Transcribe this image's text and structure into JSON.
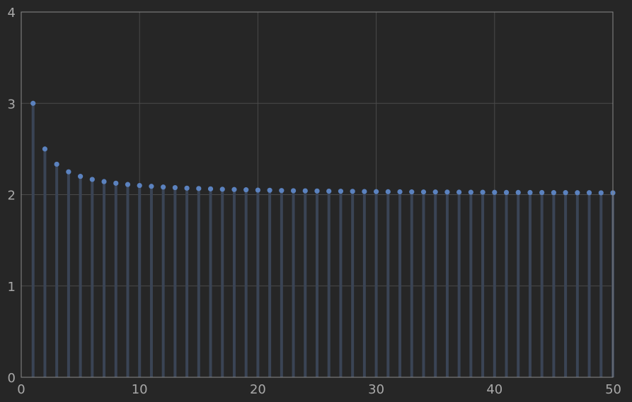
{
  "chart_data": {
    "type": "scatter",
    "style": "stem",
    "title": "",
    "xlabel": "",
    "ylabel": "",
    "xlim": [
      0,
      50
    ],
    "ylim": [
      0,
      4
    ],
    "grid": true,
    "x_ticks": [
      0,
      10,
      20,
      30,
      40,
      50
    ],
    "y_ticks": [
      0,
      1,
      2,
      3,
      4
    ],
    "series": [
      {
        "x": [
          1,
          2,
          3,
          4,
          5,
          6,
          7,
          8,
          9,
          10,
          11,
          12,
          13,
          14,
          15,
          16,
          17,
          18,
          19,
          20,
          21,
          22,
          23,
          24,
          25,
          26,
          27,
          28,
          29,
          30,
          31,
          32,
          33,
          34,
          35,
          36,
          37,
          38,
          39,
          40,
          41,
          42,
          43,
          44,
          45,
          46,
          47,
          48,
          49,
          50
        ],
        "values": [
          3.0,
          2.5,
          2.333,
          2.25,
          2.2,
          2.167,
          2.143,
          2.125,
          2.111,
          2.1,
          2.091,
          2.083,
          2.077,
          2.071,
          2.067,
          2.063,
          2.059,
          2.056,
          2.053,
          2.05,
          2.048,
          2.045,
          2.043,
          2.042,
          2.04,
          2.038,
          2.037,
          2.036,
          2.034,
          2.033,
          2.032,
          2.031,
          2.03,
          2.029,
          2.029,
          2.028,
          2.027,
          2.026,
          2.026,
          2.025,
          2.024,
          2.024,
          2.023,
          2.023,
          2.022,
          2.022,
          2.021,
          2.021,
          2.02,
          2.02
        ]
      }
    ],
    "colors": {
      "background": "#262626",
      "axis": "#8a8a8a",
      "grid": "#4a4a4a",
      "stem": "#3a4455",
      "marker": "#5b82bf"
    }
  }
}
